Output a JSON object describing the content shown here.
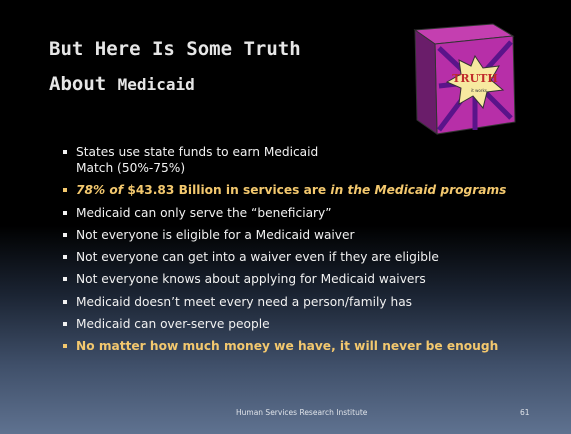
{
  "slide": {
    "title": {
      "line1": "But Here Is Some Truth",
      "line2a": "About",
      "line2b": "Medicaid"
    },
    "box_label": "TRUTH",
    "box_sublabel": "it works",
    "bullets": [
      {
        "runs": [
          {
            "text": "States use state funds to earn Medicaid Match (50%-75%)"
          }
        ]
      },
      {
        "color": "#f3c86e",
        "runs": [
          {
            "text": "78% of ",
            "bold": true,
            "italic": true
          },
          {
            "text": "$43.83 Billion in services are ",
            "bold": true
          },
          {
            "text": "in the Medicaid programs",
            "bold": true,
            "italic": true
          }
        ]
      },
      {
        "runs": [
          {
            "text": "Medicaid can only serve the “beneficiary”"
          }
        ]
      },
      {
        "runs": [
          {
            "text": "Not everyone is eligible for a Medicaid waiver"
          }
        ]
      },
      {
        "runs": [
          {
            "text": "Not everyone can get into a waiver even if they are eligible"
          }
        ]
      },
      {
        "runs": [
          {
            "text": "Not everyone knows about applying for Medicaid waivers"
          }
        ]
      },
      {
        "runs": [
          {
            "text": "Medicaid doesn’t meet every need a person/family has"
          }
        ]
      },
      {
        "runs": [
          {
            "text": "Medicaid can over-serve people"
          }
        ]
      },
      {
        "color": "#f3c86e",
        "runs": [
          {
            "text": "No matter how much money we have, it will never be enough",
            "bold": true
          }
        ]
      }
    ],
    "footer": "Human Services Research Institute",
    "page_number": "61"
  }
}
